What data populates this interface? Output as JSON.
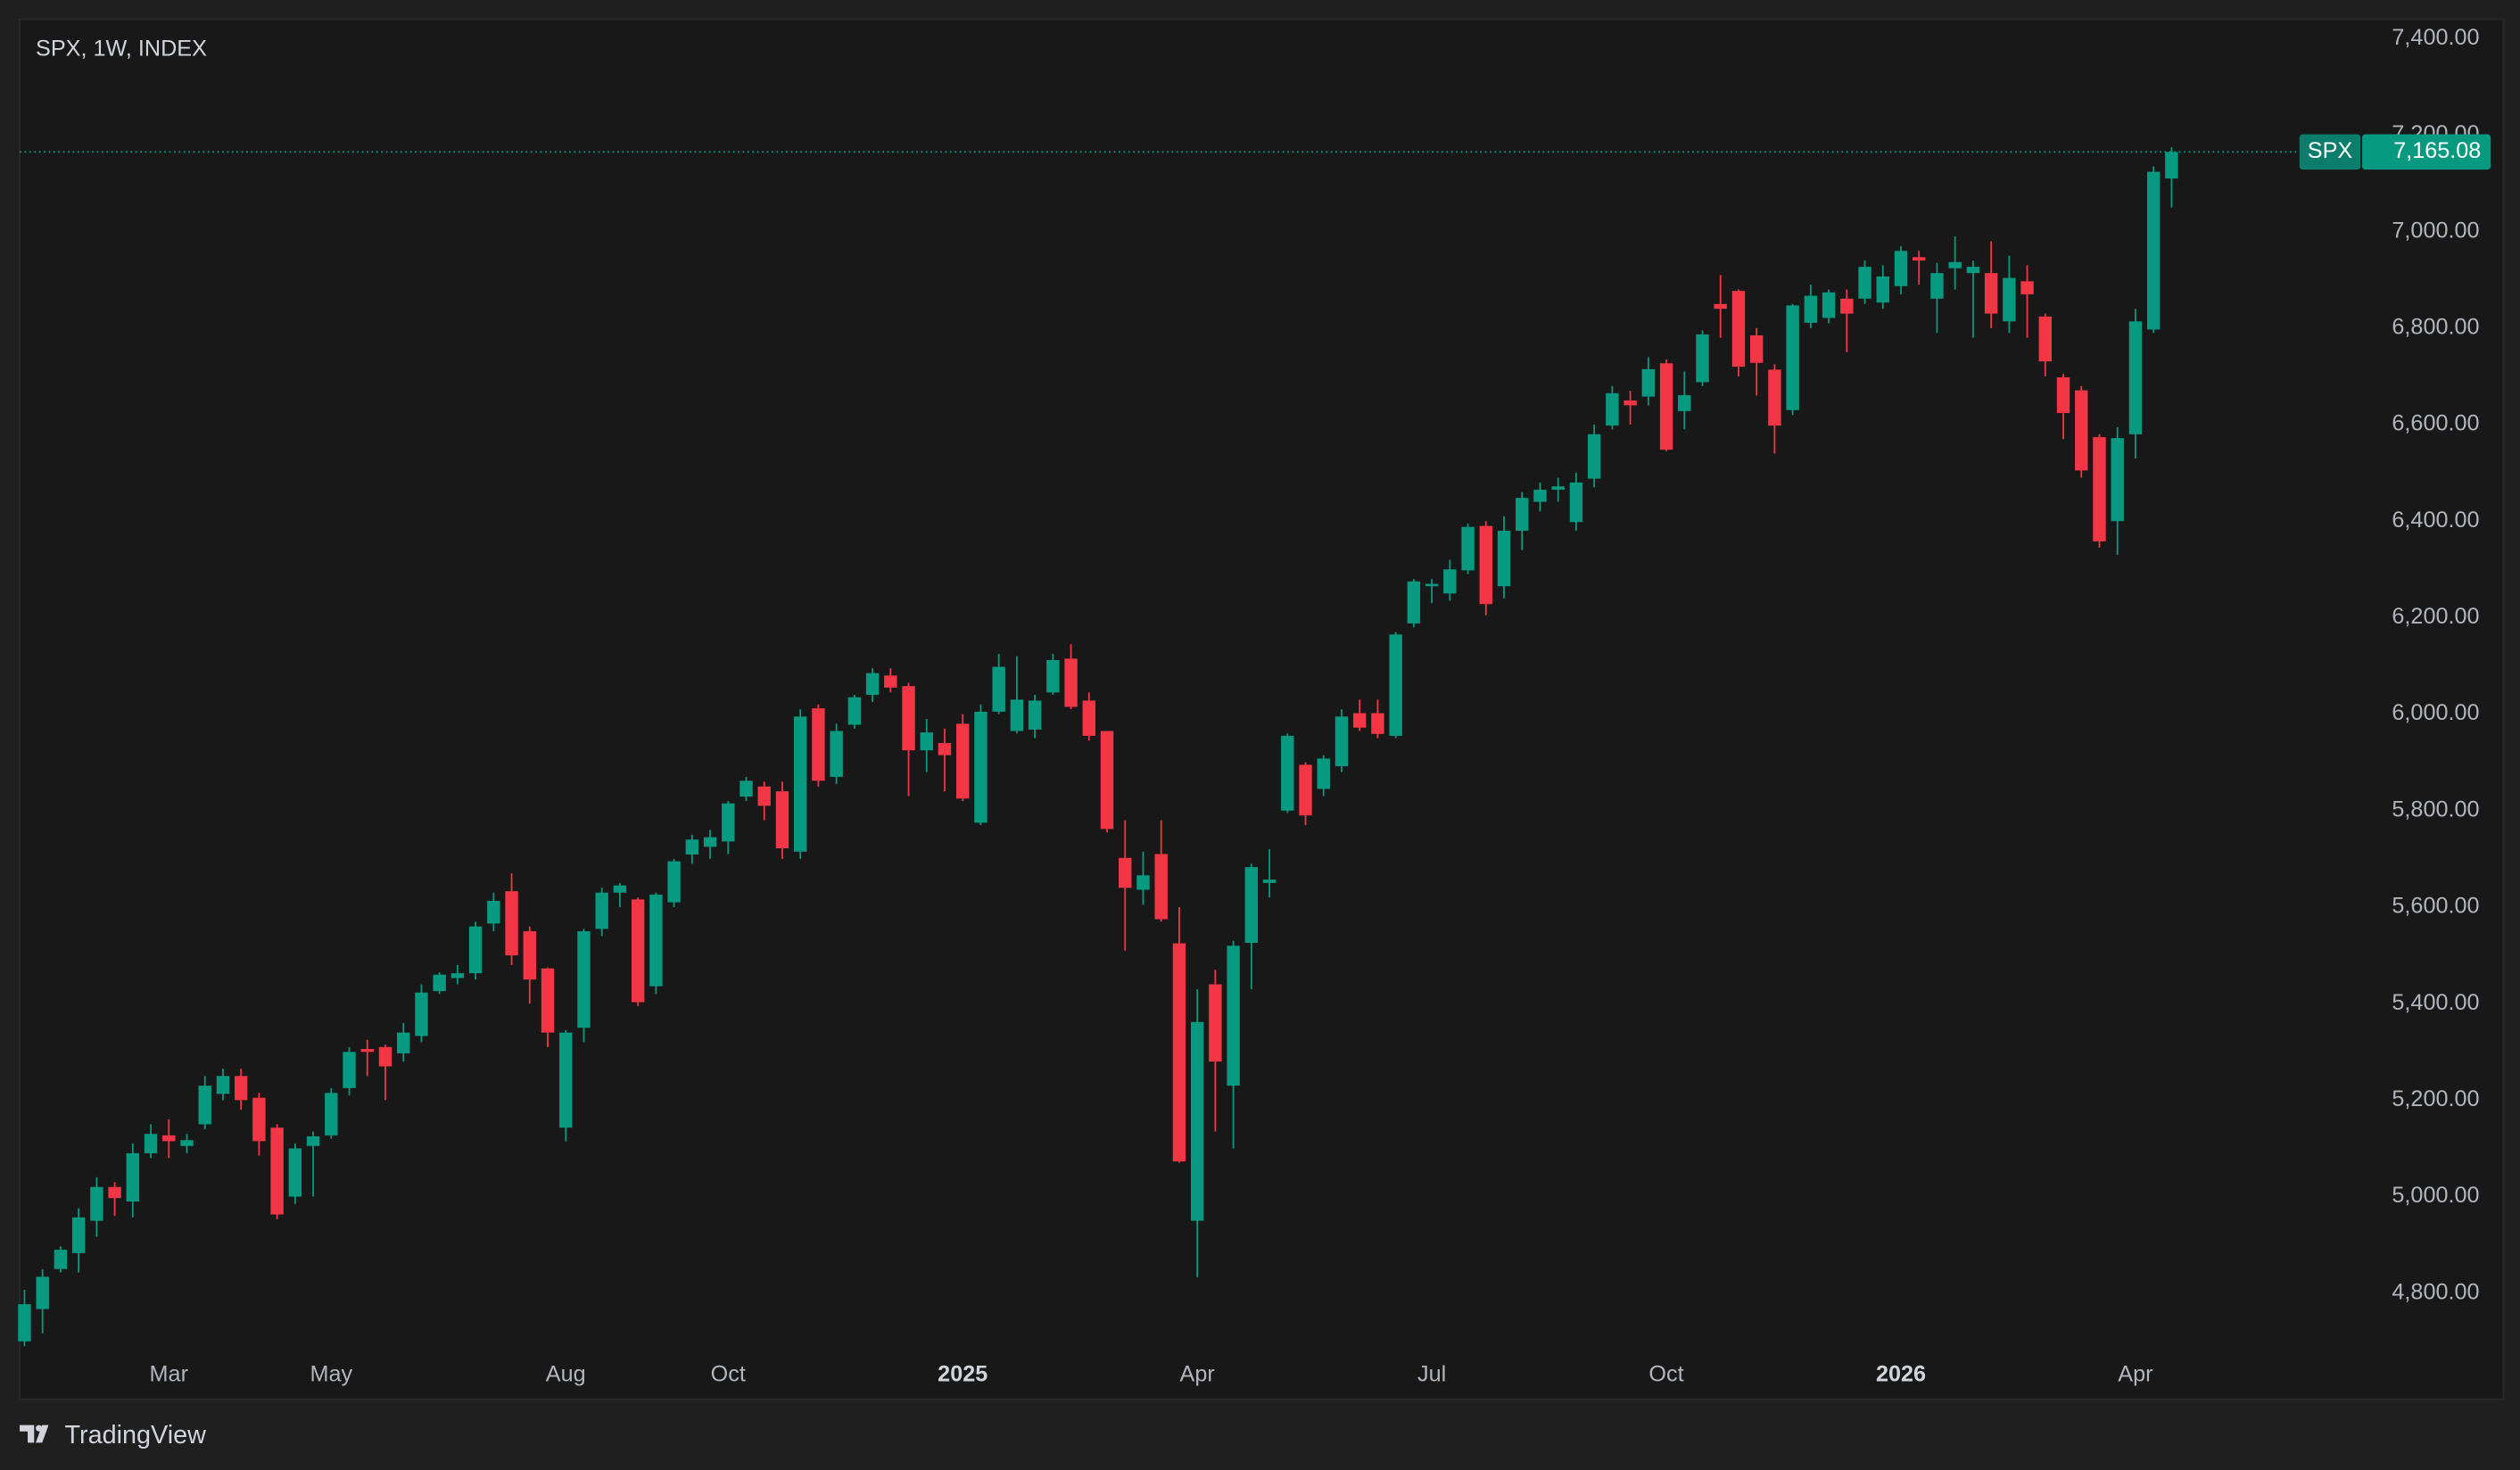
{
  "chart_data": {
    "type": "candlestick",
    "title": "SPX, 1W, INDEX",
    "source": "TradingView",
    "up_color": "#089981",
    "down_color": "#f23645",
    "grid": false,
    "categories": [
      null,
      null,
      null,
      null,
      null,
      null,
      null,
      null,
      "Mar",
      null,
      null,
      null,
      null,
      null,
      null,
      null,
      null,
      "May",
      null,
      null,
      null,
      null,
      null,
      null,
      null,
      null,
      null,
      null,
      null,
      null,
      "Aug",
      null,
      null,
      null,
      null,
      null,
      null,
      null,
      null,
      "Oct",
      null,
      null,
      null,
      null,
      null,
      null,
      null,
      null,
      null,
      null,
      null,
      null,
      "2025",
      null,
      null,
      null,
      null,
      null,
      null,
      null,
      null,
      null,
      null,
      null,
      null,
      "Apr",
      null,
      null,
      null,
      null,
      null,
      null,
      null,
      null,
      null,
      null,
      null,
      null,
      "Jul",
      null,
      null,
      null,
      null,
      null,
      null,
      null,
      null,
      null,
      null,
      null,
      null,
      "Oct",
      null,
      null,
      null,
      null,
      null,
      null,
      null,
      null,
      null,
      null,
      null,
      null,
      "2026",
      null,
      null,
      null,
      null,
      null,
      null,
      null,
      null,
      null,
      null,
      null,
      null,
      "Apr",
      null,
      null
    ],
    "open": [
      4700,
      4767,
      4850,
      4883,
      4950,
      5020,
      4990,
      5090,
      5127,
      5105,
      5150,
      5213,
      5250,
      5205,
      5143,
      5000,
      5105,
      5127,
      5225,
      5306,
      5310,
      5297,
      5333,
      5426,
      5453,
      5463,
      5566,
      5633,
      5550,
      5473,
      5143,
      5350,
      5555,
      5630,
      5616,
      5436,
      5610,
      5709,
      5725,
      5736,
      5829,
      5850,
      5840,
      5715,
      6012,
      5870,
      5978,
      6040,
      6080,
      6058,
      5925,
      5940,
      5980,
      5775,
      6005,
      5965,
      5968,
      6045,
      6115,
      6028,
      5965,
      5702,
      5636,
      5710,
      5525,
      4950,
      5440,
      5230,
      5526,
      5650,
      5800,
      5895,
      5845,
      5892,
      6002,
      6002,
      5955,
      6188,
      6265,
      6250,
      6298,
      6390,
      6265,
      6380,
      6440,
      6465,
      6398,
      6488,
      6598,
      6650,
      6658,
      6727,
      6628,
      6688,
      6850,
      6877,
      6785,
      6714,
      6630,
      6811,
      6821,
      6861,
      6861,
      6853,
      6887,
      6947,
      6861,
      6924,
      6914,
      6914,
      6814,
      6897,
      6824,
      6698,
      6671,
      6574,
      6400,
      6580,
      6797,
      7110
    ],
    "high": [
      4807,
      4850,
      4897,
      4976,
      5040,
      5030,
      5110,
      5150,
      5160,
      5130,
      5250,
      5265,
      5265,
      5215,
      5150,
      5110,
      5135,
      5225,
      5310,
      5325,
      5315,
      5360,
      5440,
      5465,
      5480,
      5570,
      5630,
      5670,
      5560,
      5475,
      5345,
      5555,
      5640,
      5650,
      5620,
      5630,
      5700,
      5750,
      5760,
      5820,
      5870,
      5860,
      5860,
      6010,
      6020,
      5980,
      6040,
      6095,
      6095,
      6065,
      5990,
      5970,
      6000,
      6020,
      6125,
      6120,
      6040,
      6125,
      6145,
      6045,
      5965,
      5780,
      5715,
      5780,
      5600,
      5430,
      5470,
      5530,
      5690,
      5720,
      5960,
      5900,
      5915,
      6010,
      6030,
      6030,
      6170,
      6280,
      6280,
      6320,
      6395,
      6400,
      6410,
      6460,
      6480,
      6490,
      6500,
      6600,
      6680,
      6670,
      6740,
      6735,
      6710,
      6795,
      6910,
      6880,
      6800,
      6725,
      6850,
      6890,
      6880,
      6880,
      6940,
      6930,
      6970,
      6960,
      6935,
      6990,
      6940,
      6980,
      6950,
      6930,
      6830,
      6705,
      6680,
      6580,
      6595,
      6840,
      7135,
      7175
    ],
    "low": [
      4690,
      4717,
      4843,
      4843,
      4917,
      4960,
      4957,
      5080,
      5080,
      5090,
      5140,
      5200,
      5180,
      5085,
      4953,
      4985,
      5000,
      5120,
      5210,
      5250,
      5200,
      5280,
      5320,
      5420,
      5440,
      5450,
      5550,
      5480,
      5400,
      5310,
      5115,
      5320,
      5540,
      5600,
      5395,
      5420,
      5600,
      5690,
      5700,
      5710,
      5820,
      5780,
      5700,
      5700,
      5850,
      5855,
      5970,
      6025,
      6045,
      5830,
      5880,
      5840,
      5820,
      5770,
      6000,
      5960,
      5950,
      6040,
      6010,
      5945,
      5755,
      5510,
      5605,
      5570,
      5070,
      4833,
      5135,
      5100,
      5430,
      5620,
      5795,
      5770,
      5830,
      5880,
      5965,
      5950,
      5950,
      6180,
      6230,
      6235,
      6290,
      6205,
      6240,
      6340,
      6420,
      6440,
      6380,
      6470,
      6590,
      6600,
      6640,
      6545,
      6590,
      6680,
      6780,
      6700,
      6660,
      6540,
      6620,
      6800,
      6810,
      6750,
      6850,
      6840,
      6870,
      6890,
      6790,
      6880,
      6780,
      6800,
      6790,
      6780,
      6700,
      6570,
      6490,
      6345,
      6330,
      6530,
      6790,
      7050
    ],
    "close": [
      4777,
      4834,
      4890,
      4957,
      5020,
      4997,
      5090,
      5130,
      5115,
      5117,
      5230,
      5250,
      5200,
      5115,
      4963,
      5100,
      5125,
      5215,
      5300,
      5300,
      5270,
      5340,
      5423,
      5460,
      5463,
      5560,
      5613,
      5500,
      5450,
      5340,
      5340,
      5550,
      5630,
      5645,
      5403,
      5626,
      5695,
      5740,
      5745,
      5815,
      5862,
      5810,
      5722,
      5995,
      5862,
      5965,
      6035,
      6085,
      6055,
      5925,
      5962,
      5915,
      5825,
      6005,
      6098,
      6030,
      6028,
      6112,
      6015,
      5955,
      5762,
      5640,
      5666,
      5575,
      5073,
      5362,
      5280,
      5520,
      5683,
      5657,
      5955,
      5790,
      5908,
      5995,
      5972,
      5959,
      6165,
      6275,
      6270,
      6300,
      6388,
      6228,
      6380,
      6448,
      6465,
      6472,
      6480,
      6580,
      6665,
      6640,
      6715,
      6548,
      6661,
      6787,
      6840,
      6720,
      6728,
      6598,
      6847,
      6867,
      6874,
      6830,
      6927,
      6907,
      6960,
      6940,
      6914,
      6937,
      6927,
      6830,
      6904,
      6870,
      6731,
      6624,
      6505,
      6358,
      6572,
      6814,
      7124,
      7165.08
    ],
    "last_price": {
      "symbol": "SPX",
      "value": 7165.08,
      "label": "7,165.08"
    },
    "ylim": [
      4580,
      7440
    ],
    "yticks": [
      {
        "value": 4800,
        "label": "4,800.00"
      },
      {
        "value": 5000,
        "label": "5,000.00"
      },
      {
        "value": 5200,
        "label": "5,200.00"
      },
      {
        "value": 5400,
        "label": "5,400.00"
      },
      {
        "value": 5600,
        "label": "5,600.00"
      },
      {
        "value": 5800,
        "label": "5,800.00"
      },
      {
        "value": 6000,
        "label": "6,000.00"
      },
      {
        "value": 6200,
        "label": "6,200.00"
      },
      {
        "value": 6400,
        "label": "6,400.00"
      },
      {
        "value": 6600,
        "label": "6,600.00"
      },
      {
        "value": 6800,
        "label": "6,800.00"
      },
      {
        "value": 7000,
        "label": "7,000.00"
      },
      {
        "value": 7200,
        "label": "7,200.00"
      },
      {
        "value": 7400,
        "label": "7,400.00"
      }
    ]
  }
}
